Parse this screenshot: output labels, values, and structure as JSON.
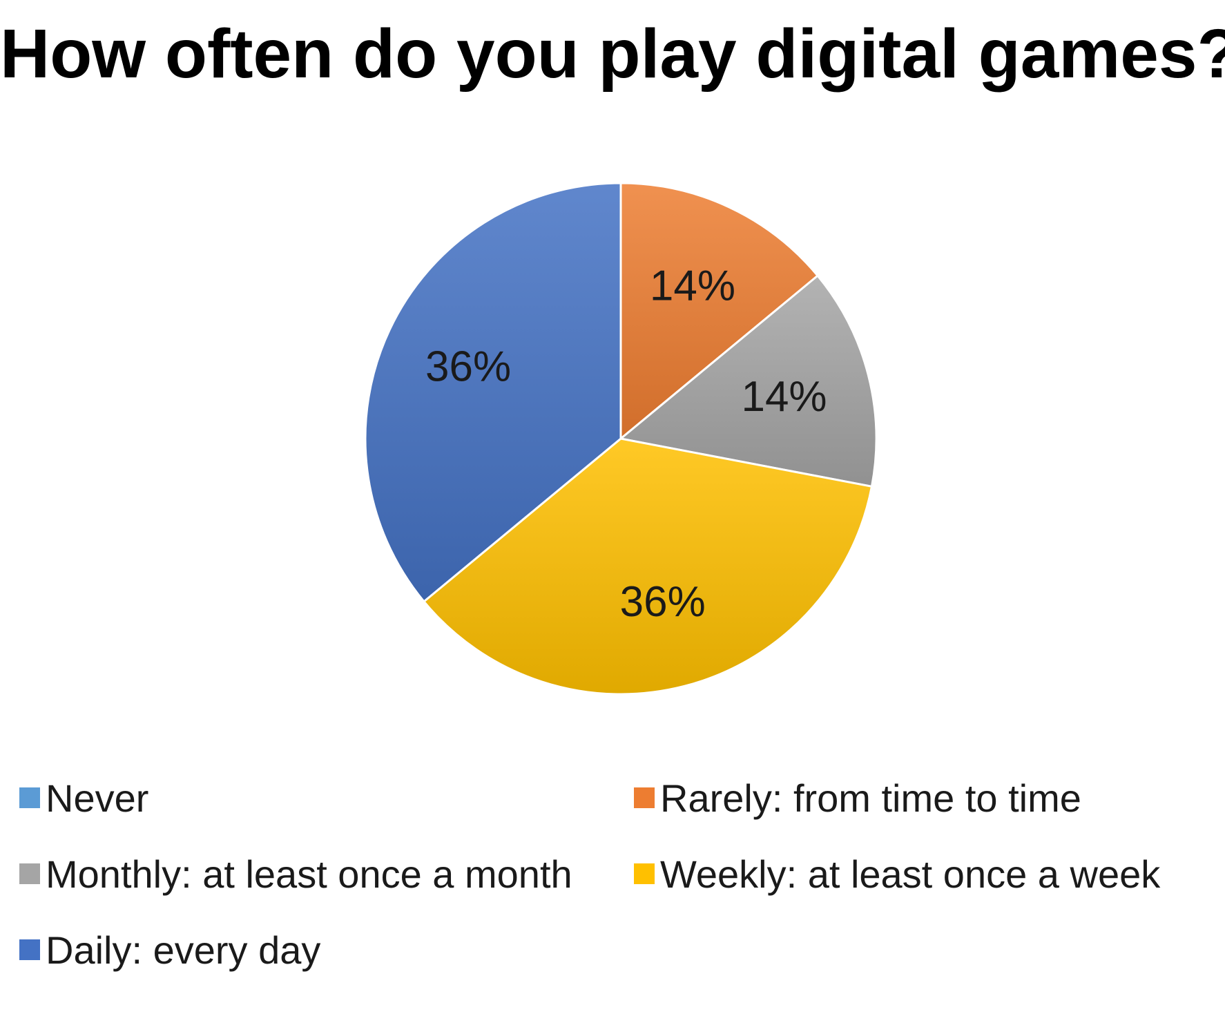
{
  "chart_data": {
    "type": "pie",
    "title": "How often do you play digital games?",
    "slices": [
      {
        "name": "Never",
        "value": 0,
        "label": "",
        "color": "#5b9bd5"
      },
      {
        "name": "Rarely: from time to time",
        "value": 14,
        "label": "14%",
        "color": "#ed7d31"
      },
      {
        "name": "Monthly: at least once a month",
        "value": 14,
        "label": "14%",
        "color": "#a5a5a5"
      },
      {
        "name": "Weekly: at least once a week",
        "value": 36,
        "label": "36%",
        "color": "#ffc000"
      },
      {
        "name": "Daily: every day",
        "value": 36,
        "label": "36%",
        "color": "#4472c4"
      }
    ],
    "legend_position": "bottom"
  }
}
